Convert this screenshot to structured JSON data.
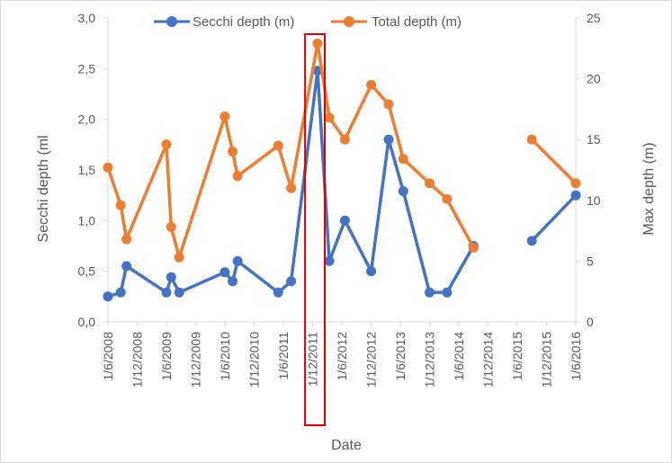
{
  "chart_data": {
    "type": "line",
    "xlabel": "Date",
    "y_left_label": "Secchi depth (ml",
    "y_right_label": "Max depth (m)",
    "y_left_range": [
      0,
      3
    ],
    "y_right_range": [
      0,
      25
    ],
    "y_left_ticks": [
      "0,0",
      "0,5",
      "1,0",
      "1,5",
      "2,0",
      "2,5",
      "3,0"
    ],
    "y_right_ticks": [
      "0",
      "5",
      "10",
      "15",
      "20",
      "25"
    ],
    "x_ticks": [
      "1/6/2008",
      "1/12/2008",
      "1/6/2009",
      "1/12/2009",
      "1/6/2010",
      "1/12/2010",
      "1/6/2011",
      "1/12/2011",
      "1/6/2012",
      "1/12/2012",
      "1/6/2013",
      "1/12/2013",
      "1/6/2014",
      "1/12/2014",
      "1/6/2015",
      "1/12/2015",
      "1/6/2016"
    ],
    "x_range": [
      "2008-06-01",
      "2016-06-01"
    ],
    "legend_position": "top",
    "grid": false,
    "highlight": {
      "x_start": "2011-10-15",
      "x_end": "2012-02-15",
      "color": "#e00000"
    },
    "series": [
      {
        "name": "Secchi depth (m)",
        "axis": "left",
        "color": "#4472c4",
        "points": [
          [
            "2008-06-01",
            0.25
          ],
          [
            "2008-08-20",
            0.29
          ],
          [
            "2008-09-25",
            0.55
          ],
          [
            "2009-06-01",
            0.29
          ],
          [
            "2009-07-01",
            0.44
          ],
          [
            "2009-08-20",
            0.29
          ],
          [
            "2010-06-01",
            0.49
          ],
          [
            "2010-07-20",
            0.4
          ],
          [
            "2010-08-20",
            0.6
          ],
          [
            "2011-05-01",
            0.29
          ],
          [
            "2011-07-20",
            0.4
          ],
          [
            "2012-01-01",
            2.48
          ],
          [
            "2012-03-15",
            0.6
          ],
          [
            "2012-06-20",
            1.0
          ],
          [
            "2012-12-01",
            0.5
          ],
          [
            "2013-03-20",
            1.8
          ],
          [
            "2013-06-20",
            1.29
          ],
          [
            "2013-12-01",
            0.29
          ],
          [
            "2014-03-20",
            0.29
          ],
          [
            "2014-09-01",
            0.75
          ],
          null,
          [
            "2015-09-01",
            0.8
          ],
          [
            "2016-06-01",
            1.25
          ]
        ]
      },
      {
        "name": "Total depth (m)",
        "axis": "right",
        "color": "#ed7d31",
        "points": [
          [
            "2008-06-01",
            12.7
          ],
          [
            "2008-08-20",
            9.6
          ],
          [
            "2008-09-25",
            6.8
          ],
          [
            "2009-06-01",
            14.6
          ],
          [
            "2009-07-01",
            7.8
          ],
          [
            "2009-08-20",
            5.3
          ],
          [
            "2010-06-01",
            16.9
          ],
          [
            "2010-07-20",
            14.0
          ],
          [
            "2010-08-20",
            12.0
          ],
          [
            "2011-05-01",
            14.5
          ],
          [
            "2011-07-20",
            11.0
          ],
          [
            "2012-01-01",
            22.9
          ],
          [
            "2012-03-15",
            16.8
          ],
          [
            "2012-06-20",
            15.0
          ],
          [
            "2012-12-01",
            19.5
          ],
          [
            "2013-03-20",
            17.9
          ],
          [
            "2013-06-20",
            13.4
          ],
          [
            "2013-12-01",
            11.4
          ],
          [
            "2014-03-20",
            10.1
          ],
          [
            "2014-09-01",
            6.1
          ],
          null,
          [
            "2015-09-01",
            15.0
          ],
          [
            "2016-06-01",
            11.4
          ]
        ]
      }
    ]
  }
}
